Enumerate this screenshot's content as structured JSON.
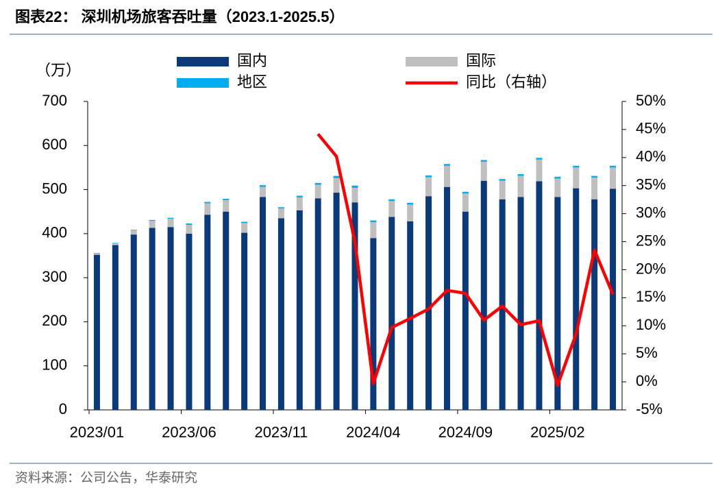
{
  "chart_data": {
    "type": "bar",
    "title": "图表22： 深圳机场旅客吞吐量（2023.1-2025.5）",
    "y_label": "（万）",
    "source": "资料来源：公司公告，华泰研究",
    "stacked": true,
    "categories": [
      "2023/01",
      null,
      null,
      null,
      null,
      "2023/06",
      null,
      null,
      null,
      null,
      "2023/11",
      null,
      null,
      null,
      null,
      "2024/04",
      null,
      null,
      null,
      null,
      "2024/09",
      null,
      null,
      null,
      null,
      "2025/02",
      null,
      null,
      null
    ],
    "series": [
      {
        "name": "国内",
        "color": "#0b3a7a",
        "type": "bar",
        "values": [
          352,
          374,
          398,
          413,
          415,
          400,
          443,
          450,
          402,
          483,
          435,
          453,
          480,
          493,
          471,
          390,
          438,
          428,
          485,
          506,
          450,
          520,
          478,
          483,
          519,
          483,
          503,
          478,
          502
        ]
      },
      {
        "name": "国际",
        "color": "#bfbfbf",
        "type": "bar",
        "values": [
          3,
          4,
          10,
          16,
          19,
          20,
          26,
          26,
          22,
          23,
          22,
          29,
          31,
          33,
          33,
          36,
          36,
          38,
          43,
          48,
          41,
          43,
          42,
          48,
          49,
          42,
          47,
          49,
          48
        ]
      },
      {
        "name": "地区",
        "color": "#00aeef",
        "type": "bar",
        "values": [
          1,
          1,
          1,
          2,
          2,
          3,
          3,
          3,
          3,
          4,
          3,
          4,
          4,
          5,
          5,
          4,
          4,
          4,
          4,
          4,
          4,
          4,
          4,
          4,
          4,
          4,
          4,
          4,
          4
        ]
      },
      {
        "name": "同比（右轴）",
        "color": "#ff0000",
        "type": "line",
        "axis": "y2",
        "values": [
          null,
          null,
          null,
          null,
          null,
          null,
          null,
          null,
          null,
          null,
          null,
          null,
          44.2,
          40.2,
          25,
          -0.3,
          9.7,
          11.3,
          13,
          16.3,
          15.8,
          11,
          13.5,
          10.2,
          10.9,
          -0.6,
          8.5,
          23.5,
          15.6
        ]
      }
    ],
    "ylim": [
      0,
      700
    ],
    "yticks": [
      0,
      100,
      200,
      300,
      400,
      500,
      600,
      700
    ],
    "y2lim": [
      -5,
      50
    ],
    "y2ticks": [
      {
        "value": -5,
        "label": "-5%"
      },
      {
        "value": 0,
        "label": "0%"
      },
      {
        "value": 5,
        "label": "5%"
      },
      {
        "value": 10,
        "label": "10%"
      },
      {
        "value": 15,
        "label": "15%"
      },
      {
        "value": 20,
        "label": "20%"
      },
      {
        "value": 25,
        "label": "25%"
      },
      {
        "value": 30,
        "label": "30%"
      },
      {
        "value": 35,
        "label": "35%"
      },
      {
        "value": 40,
        "label": "40%"
      },
      {
        "value": 45,
        "label": "45%"
      },
      {
        "value": 50,
        "label": "50%"
      }
    ],
    "grid": false
  }
}
